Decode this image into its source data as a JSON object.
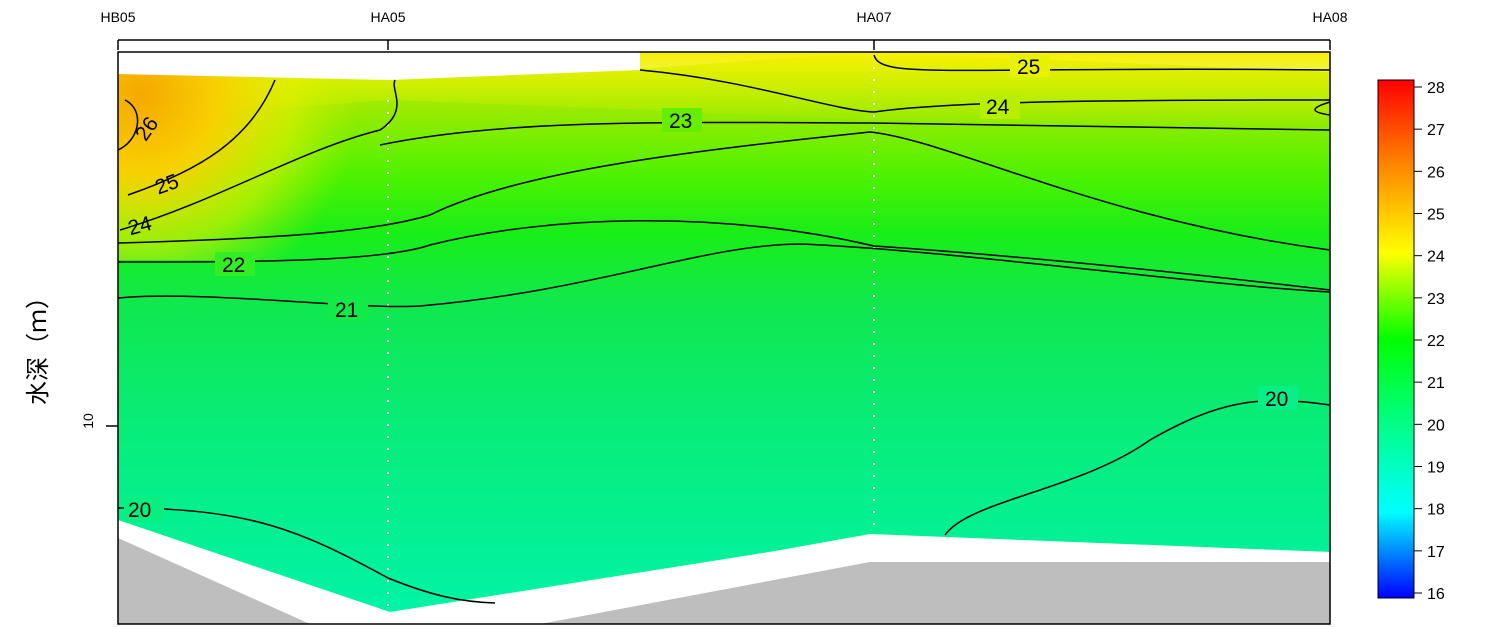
{
  "chart_data": {
    "type": "heatmap",
    "stations": [
      "HB05",
      "HA05",
      "HA07",
      "HA08"
    ],
    "ylabel": "水深（ｍ）",
    "yticks": [
      10
    ],
    "ylim": [
      0,
      20
    ],
    "colorbar": {
      "min": 16,
      "max": 28,
      "ticks": [
        16,
        17,
        18,
        19,
        20,
        21,
        22,
        23,
        24,
        25,
        26,
        27,
        28
      ],
      "colors": [
        "#0000ff",
        "#00ffff",
        "#00ff88",
        "#00ff00",
        "#ffff00",
        "#ff8800",
        "#ff0000"
      ]
    },
    "contour_labels": [
      "26",
      "25",
      "24",
      "22",
      "21",
      "23",
      "25",
      "24",
      "20",
      "20"
    ]
  }
}
